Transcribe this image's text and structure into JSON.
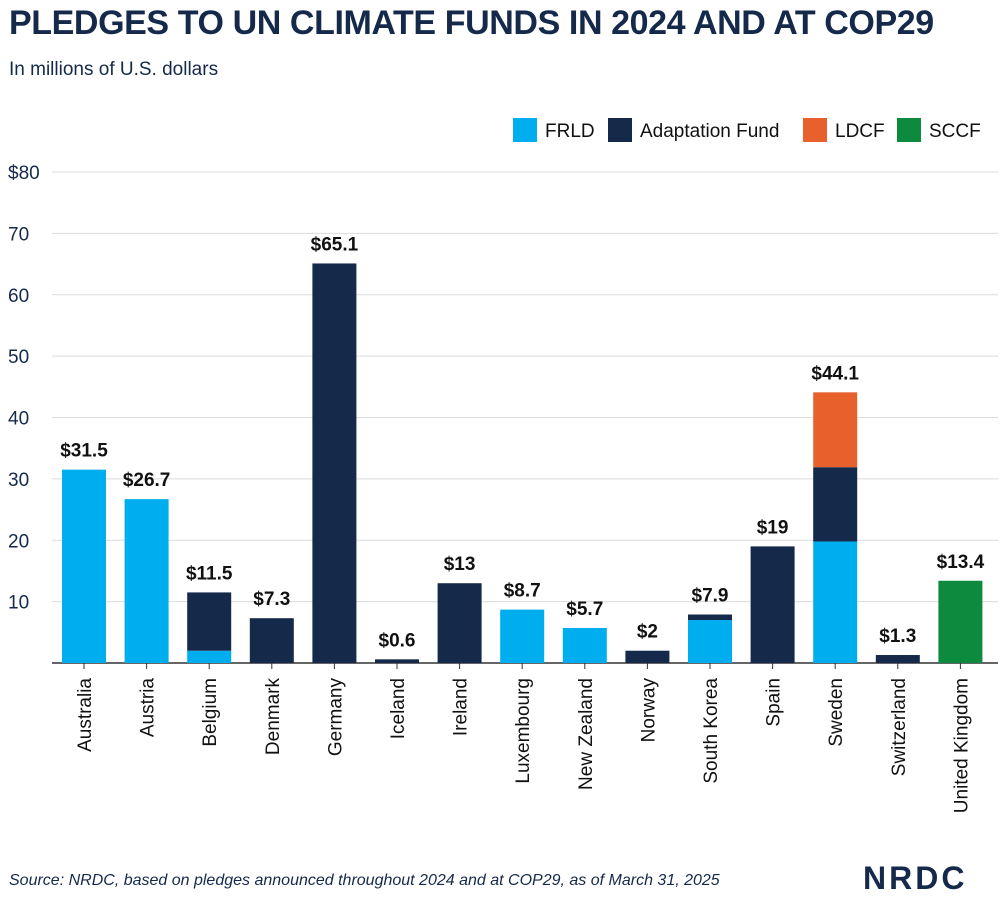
{
  "logo_text": "NRDC",
  "source": "Source: NRDC, based on pledges announced throughout 2024 and at COP29, as of March 31, 2025",
  "colors": {
    "FRLD": "#00aeef",
    "Adaptation Fund": "#15294b",
    "LDCF": "#e8602c",
    "SCCF": "#0e8a3e",
    "text": "#15294b",
    "grid": "#dcdcdc",
    "axis": "#333333"
  },
  "chart_data": {
    "type": "bar",
    "stacked": true,
    "title": "PLEDGES TO UN CLIMATE FUNDS IN 2024 AND AT COP29",
    "subtitle": "In millions of U.S. dollars",
    "xlabel": "",
    "ylabel": "",
    "ylim": [
      0,
      80
    ],
    "yticks": [
      10,
      20,
      30,
      40,
      50,
      60,
      70,
      80
    ],
    "ytick_labels": [
      "10",
      "20",
      "30",
      "40",
      "50",
      "60",
      "70",
      "$80"
    ],
    "grid": true,
    "legend_position": "top-right",
    "categories": [
      "Australia",
      "Austria",
      "Belgium",
      "Denmark",
      "Germany",
      "Iceland",
      "Ireland",
      "Luxembourg",
      "New Zealand",
      "Norway",
      "South Korea",
      "Spain",
      "Sweden",
      "Switzerland",
      "United Kingdom"
    ],
    "series": [
      {
        "name": "FRLD",
        "values": [
          31.5,
          26.7,
          2.0,
          0,
          0,
          0,
          0,
          8.7,
          5.7,
          0,
          7.0,
          0,
          19.8,
          0,
          0
        ]
      },
      {
        "name": "Adaptation Fund",
        "values": [
          0,
          0,
          9.5,
          7.3,
          65.1,
          0.6,
          13.0,
          0,
          0,
          2.0,
          0.9,
          19.0,
          12.1,
          1.3,
          0
        ]
      },
      {
        "name": "LDCF",
        "values": [
          0,
          0,
          0,
          0,
          0,
          0,
          0,
          0,
          0,
          0,
          0,
          0,
          12.2,
          0,
          0
        ]
      },
      {
        "name": "SCCF",
        "values": [
          0,
          0,
          0,
          0,
          0,
          0,
          0,
          0,
          0,
          0,
          0,
          0,
          0,
          0,
          13.4
        ]
      }
    ],
    "totals": [
      31.5,
      26.7,
      11.5,
      7.3,
      65.1,
      0.6,
      13,
      8.7,
      5.7,
      2,
      7.9,
      19,
      44.1,
      1.3,
      13.4
    ],
    "total_labels": [
      "$31.5",
      "$26.7",
      "$11.5",
      "$7.3",
      "$65.1",
      "$0.6",
      "$13",
      "$8.7",
      "$5.7",
      "$2",
      "$7.9",
      "$19",
      "$44.1",
      "$1.3",
      "$13.4"
    ]
  }
}
